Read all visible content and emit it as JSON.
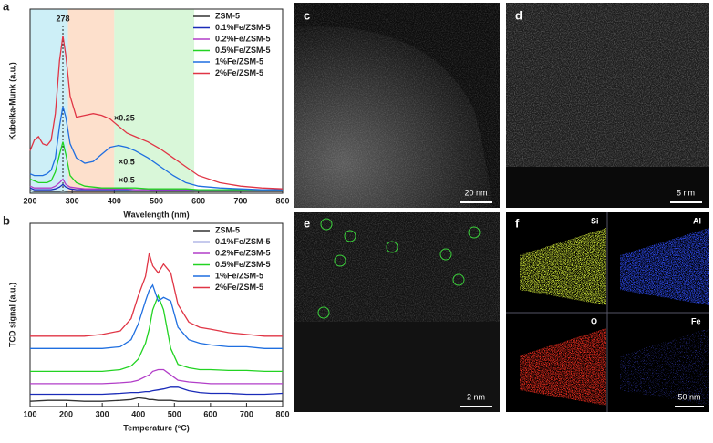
{
  "chart_data": [
    {
      "type": "line",
      "panel_label": "a",
      "x_label": "Wavelength (nm)",
      "y_label": "Kubelka-Munk (a.u.)",
      "x": [
        200,
        210,
        220,
        230,
        240,
        250,
        260,
        270,
        278,
        285,
        295,
        310,
        330,
        350,
        370,
        390,
        410,
        430,
        450,
        480,
        510,
        540,
        570,
        600,
        650,
        700,
        750,
        800
      ],
      "xlim": [
        200,
        800
      ],
      "xticks": [
        200,
        300,
        400,
        500,
        600,
        700,
        800
      ],
      "ylim": [
        0,
        100
      ],
      "bands": [
        {
          "range": [
            200,
            290
          ],
          "color": "#cdeff7"
        },
        {
          "range": [
            290,
            400
          ],
          "color": "#fde0cc"
        },
        {
          "range": [
            400,
            590
          ],
          "color": "#d9f7d9"
        }
      ],
      "peak_marker": 278,
      "annotations": [
        "×0.25",
        "×0.5",
        "×0.5"
      ],
      "series": [
        {
          "name": "ZSM-5",
          "color": "#333333",
          "values": [
            1.5,
            1,
            1,
            1,
            1,
            1,
            1,
            1,
            1.2,
            1,
            1,
            1,
            1,
            1,
            1,
            1,
            1,
            1,
            1,
            1,
            1,
            1,
            1,
            1,
            1,
            1,
            1,
            1
          ]
        },
        {
          "name": "0.1%Fe/ZSM-5",
          "color": "#1a2bb8",
          "values": [
            3,
            2,
            2,
            2,
            2,
            2,
            2.5,
            3.5,
            5,
            3.5,
            2.5,
            2,
            2,
            2,
            2,
            2,
            2,
            2,
            2,
            2,
            1.5,
            1.5,
            1.5,
            1.5,
            1.5,
            1.5,
            1.5,
            1.5
          ]
        },
        {
          "name": "0.2%Fe/ZSM-5",
          "color": "#b23ec8",
          "values": [
            4,
            3,
            3,
            3,
            3,
            3,
            4,
            6,
            8,
            5,
            3.5,
            3,
            2.5,
            2.5,
            2.5,
            2.5,
            2.5,
            2.5,
            2,
            2,
            2,
            2,
            2,
            2,
            2,
            2,
            2,
            2
          ]
        },
        {
          "name": "0.5%Fe/ZSM-5",
          "color": "#22d322",
          "values": [
            8,
            7,
            6,
            6,
            6,
            7,
            12,
            22,
            29,
            22,
            10,
            6,
            4,
            3.5,
            3,
            3,
            3,
            3,
            3,
            2.5,
            2.5,
            2.5,
            2.5,
            2,
            2,
            2,
            2,
            2
          ]
        },
        {
          "name": "1%Fe/ZSM-5",
          "color": "#1f6fe0",
          "values": [
            11,
            10,
            10,
            10,
            11,
            13,
            20,
            38,
            49,
            43,
            28,
            20,
            17,
            18,
            22,
            26,
            27,
            26,
            24,
            20,
            15,
            10,
            6,
            4,
            3,
            2.5,
            2,
            2
          ]
        },
        {
          "name": "2%Fe/ZSM-5",
          "color": "#e03545",
          "values": [
            24,
            30,
            32,
            28,
            27,
            30,
            45,
            75,
            89,
            78,
            55,
            43,
            44,
            45,
            44,
            42,
            38,
            34,
            32,
            29,
            25,
            20,
            15,
            10,
            6,
            4,
            3,
            2.5
          ]
        }
      ]
    },
    {
      "type": "line",
      "panel_label": "b",
      "x_label": "Temperature (°C)",
      "y_label": "TCD signal (a.u.)",
      "x": [
        100,
        150,
        200,
        250,
        300,
        350,
        380,
        400,
        420,
        430,
        440,
        455,
        470,
        490,
        510,
        540,
        570,
        600,
        650,
        700,
        750,
        800
      ],
      "xlim": [
        100,
        800
      ],
      "xticks": [
        100,
        200,
        300,
        400,
        500,
        600,
        700,
        800
      ],
      "ylim": [
        0,
        100
      ],
      "series": [
        {
          "name": "ZSM-5",
          "color": "#333333",
          "values": [
            3,
            3.5,
            3.5,
            3,
            3,
            3.5,
            4,
            5,
            4.5,
            4,
            4,
            3.5,
            3.5,
            3.5,
            3,
            3,
            3,
            3,
            3,
            3,
            3,
            3
          ]
        },
        {
          "name": "0.1%Fe/ZSM-5",
          "color": "#1a2bb8",
          "values": [
            7,
            7,
            7,
            7,
            7,
            7.5,
            8,
            8,
            8.5,
            8.5,
            9,
            9.5,
            10,
            11,
            11,
            9,
            8,
            7.5,
            7.5,
            7,
            7,
            7.5
          ]
        },
        {
          "name": "0.2%Fe/ZSM-5",
          "color": "#b23ec8",
          "values": [
            13,
            13,
            13,
            13,
            13,
            13.5,
            14,
            15,
            17,
            18,
            20,
            21,
            21,
            18,
            15,
            14,
            13.5,
            13,
            13,
            13,
            13,
            13
          ]
        },
        {
          "name": "0.5%Fe/ZSM-5",
          "color": "#22d322",
          "values": [
            20,
            20,
            20,
            20,
            20,
            21,
            23,
            27,
            36,
            44,
            55,
            63,
            55,
            33,
            24,
            22,
            21,
            21,
            20.5,
            20.5,
            20,
            20
          ]
        },
        {
          "name": "1%Fe/ZSM-5",
          "color": "#1f6fe0",
          "values": [
            33,
            33,
            33,
            33,
            33,
            34,
            38,
            47,
            60,
            66,
            69,
            60,
            62,
            60,
            45,
            38,
            36,
            35,
            34,
            34,
            33,
            33
          ]
        },
        {
          "name": "2%Fe/ZSM-5",
          "color": "#e03545",
          "values": [
            40,
            40,
            40,
            40,
            41,
            43,
            50,
            63,
            74,
            87,
            80,
            76,
            81,
            76,
            58,
            48,
            45,
            44,
            42,
            41,
            40,
            40
          ]
        }
      ]
    }
  ],
  "panels": [
    {
      "label": "c",
      "scale_bar": "20 nm"
    },
    {
      "label": "d",
      "scale_bar": "5 nm"
    },
    {
      "label": "e",
      "scale_bar": "2 nm"
    },
    {
      "label": "f",
      "scale_bar": "50 nm",
      "elements": [
        "Si",
        "Al",
        "O",
        "Fe"
      ]
    }
  ]
}
